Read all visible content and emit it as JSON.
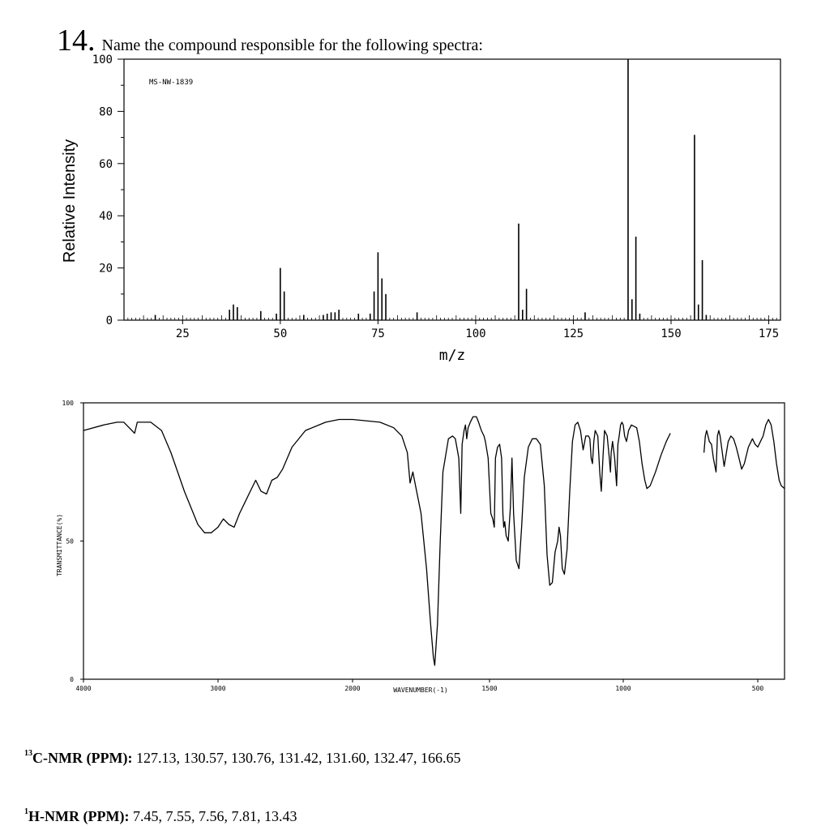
{
  "question": {
    "number": "14.",
    "text": "Name the compound responsible for the following spectra:"
  },
  "chart_data": [
    {
      "type": "bar",
      "title": "MS-NW-1839",
      "xlabel": "m/z",
      "ylabel": "Relative Intensity",
      "xlim": [
        10,
        178
      ],
      "ylim": [
        0,
        100
      ],
      "xticks": [
        25,
        50,
        75,
        100,
        125,
        150,
        175
      ],
      "yticks": [
        0,
        20,
        40,
        60,
        80,
        100
      ],
      "peaks": [
        [
          18,
          2
        ],
        [
          37,
          4
        ],
        [
          38,
          6
        ],
        [
          39,
          5
        ],
        [
          45,
          3.5
        ],
        [
          49,
          2.5
        ],
        [
          50,
          20
        ],
        [
          51,
          11
        ],
        [
          56,
          2
        ],
        [
          61,
          2
        ],
        [
          62,
          2.5
        ],
        [
          63,
          3
        ],
        [
          64,
          3
        ],
        [
          65,
          4
        ],
        [
          70,
          2.5
        ],
        [
          73,
          2.5
        ],
        [
          74,
          11
        ],
        [
          75,
          26
        ],
        [
          76,
          16
        ],
        [
          77,
          10
        ],
        [
          85,
          3
        ],
        [
          111,
          37
        ],
        [
          112,
          4
        ],
        [
          113,
          12
        ],
        [
          128,
          3
        ],
        [
          139,
          100
        ],
        [
          140,
          8
        ],
        [
          141,
          32
        ],
        [
          142,
          2.5
        ],
        [
          156,
          71
        ],
        [
          157,
          6
        ],
        [
          158,
          23
        ],
        [
          159,
          2
        ]
      ]
    },
    {
      "type": "line",
      "xlabel": "WAVENUMBER(-1)",
      "ylabel": "TRANSMITTANCE(%)",
      "xlim": [
        4000,
        400
      ],
      "ylim": [
        0,
        100
      ],
      "xticks": [
        "4000",
        "3000",
        "2000",
        "1500",
        "1000",
        "500"
      ],
      "yticks": [
        "0",
        "50",
        "100"
      ],
      "series": [
        {
          "segments": [
            [
              [
                4000,
                90
              ],
              [
                3850,
                92
              ],
              [
                3750,
                93
              ],
              [
                3700,
                93
              ],
              [
                3660,
                91
              ],
              [
                3620,
                89
              ],
              [
                3600,
                93
              ],
              [
                3500,
                93
              ],
              [
                3420,
                90
              ],
              [
                3350,
                82
              ],
              [
                3250,
                68
              ],
              [
                3150,
                56
              ],
              [
                3100,
                53
              ],
              [
                3050,
                53
              ],
              [
                3000,
                55
              ],
              [
                2960,
                58
              ],
              [
                2920,
                56
              ],
              [
                2880,
                55
              ],
              [
                2840,
                60
              ],
              [
                2800,
                64
              ],
              [
                2760,
                68
              ],
              [
                2720,
                72
              ],
              [
                2680,
                68
              ],
              [
                2640,
                67
              ],
              [
                2600,
                72
              ],
              [
                2560,
                73
              ],
              [
                2520,
                76
              ],
              [
                2450,
                84
              ],
              [
                2350,
                90
              ],
              [
                2200,
                93
              ],
              [
                2100,
                94
              ],
              [
                2000,
                94
              ],
              [
                1900,
                93
              ],
              [
                1850,
                91
              ],
              [
                1820,
                88
              ],
              [
                1800,
                82
              ],
              [
                1790,
                71
              ],
              [
                1780,
                75
              ],
              [
                1770,
                70
              ],
              [
                1750,
                60
              ],
              [
                1730,
                40
              ],
              [
                1715,
                20
              ],
              [
                1705,
                8
              ],
              [
                1700,
                5
              ],
              [
                1690,
                20
              ],
              [
                1680,
                50
              ],
              [
                1670,
                75
              ],
              [
                1650,
                87
              ],
              [
                1635,
                88
              ],
              [
                1625,
                87
              ],
              [
                1612,
                80
              ],
              [
                1605,
                60
              ],
              [
                1600,
                85
              ],
              [
                1593,
                90
              ],
              [
                1588,
                92
              ],
              [
                1583,
                87
              ],
              [
                1578,
                91
              ],
              [
                1570,
                93
              ],
              [
                1560,
                95
              ],
              [
                1548,
                95
              ],
              [
                1540,
                93
              ],
              [
                1530,
                90
              ],
              [
                1520,
                88
              ],
              [
                1515,
                86
              ],
              [
                1505,
                80
              ],
              [
                1495,
                60
              ],
              [
                1488,
                58
              ],
              [
                1482,
                55
              ],
              [
                1478,
                80
              ],
              [
                1470,
                84
              ],
              [
                1462,
                85
              ],
              [
                1455,
                80
              ],
              [
                1450,
                60
              ],
              [
                1447,
                55
              ],
              [
                1443,
                57
              ],
              [
                1438,
                52
              ],
              [
                1430,
                50
              ],
              [
                1422,
                62
              ],
              [
                1416,
                80
              ],
              [
                1410,
                60
              ],
              [
                1400,
                43
              ],
              [
                1390,
                40
              ],
              [
                1380,
                55
              ],
              [
                1370,
                73
              ],
              [
                1355,
                84
              ],
              [
                1340,
                87
              ],
              [
                1325,
                87
              ],
              [
                1310,
                85
              ],
              [
                1295,
                70
              ],
              [
                1285,
                45
              ],
              [
                1275,
                34
              ],
              [
                1265,
                35
              ],
              [
                1255,
                46
              ],
              [
                1245,
                50
              ],
              [
                1240,
                55
              ],
              [
                1235,
                52
              ],
              [
                1228,
                40
              ],
              [
                1220,
                38
              ],
              [
                1210,
                47
              ],
              [
                1200,
                68
              ],
              [
                1190,
                86
              ],
              [
                1180,
                92
              ],
              [
                1170,
                93
              ],
              [
                1160,
                90
              ],
              [
                1150,
                83
              ],
              [
                1140,
                88
              ],
              [
                1130,
                88
              ],
              [
                1125,
                87
              ],
              [
                1120,
                80
              ],
              [
                1115,
                78
              ],
              [
                1110,
                86
              ],
              [
                1105,
                90
              ],
              [
                1095,
                88
              ],
              [
                1088,
                75
              ],
              [
                1082,
                68
              ],
              [
                1075,
                82
              ],
              [
                1070,
                90
              ],
              [
                1060,
                88
              ],
              [
                1052,
                80
              ],
              [
                1048,
                75
              ],
              [
                1045,
                82
              ],
              [
                1040,
                86
              ],
              [
                1032,
                80
              ],
              [
                1025,
                70
              ],
              [
                1020,
                85
              ],
              [
                1015,
                88
              ],
              [
                1010,
                92
              ],
              [
                1005,
                93
              ],
              [
                1000,
                92
              ],
              [
                995,
                88
              ],
              [
                988,
                86
              ],
              [
                980,
                90
              ],
              [
                970,
                92
              ],
              [
                950,
                91
              ],
              [
                940,
                86
              ],
              [
                930,
                78
              ],
              [
                920,
                72
              ],
              [
                912,
                69
              ],
              [
                900,
                70
              ],
              [
                880,
                75
              ],
              [
                860,
                81
              ],
              [
                840,
                86
              ],
              [
                825,
                89
              ]
            ],
            [
              [
                700,
                82
              ],
              [
                695,
                88
              ],
              [
                690,
                90
              ],
              [
                685,
                88
              ],
              [
                680,
                86
              ],
              [
                672,
                85
              ],
              [
                665,
                80
              ],
              [
                655,
                75
              ],
              [
                650,
                88
              ],
              [
                645,
                90
              ],
              [
                640,
                88
              ],
              [
                625,
                77
              ],
              [
                620,
                80
              ],
              [
                610,
                86
              ],
              [
                600,
                88
              ],
              [
                590,
                87
              ],
              [
                580,
                84
              ],
              [
                570,
                80
              ],
              [
                560,
                76
              ],
              [
                550,
                78
              ],
              [
                535,
                84
              ],
              [
                520,
                87
              ],
              [
                510,
                85
              ],
              [
                500,
                84
              ],
              [
                490,
                86
              ],
              [
                480,
                88
              ],
              [
                470,
                92
              ],
              [
                460,
                94
              ],
              [
                450,
                92
              ],
              [
                440,
                86
              ],
              [
                430,
                78
              ],
              [
                420,
                72
              ],
              [
                412,
                70
              ],
              [
                400,
                69
              ]
            ]
          ]
        }
      ]
    }
  ],
  "nmr": {
    "c13": {
      "isotope": "13",
      "label": "C-NMR (PPM):",
      "values": "127.13, 130.57, 130.76, 131.42, 131.60, 132.47, 166.65"
    },
    "h1": {
      "isotope": "1",
      "label": "H-NMR (PPM):",
      "values": "7.45, 7.55, 7.56, 7.81, 13.43"
    }
  }
}
